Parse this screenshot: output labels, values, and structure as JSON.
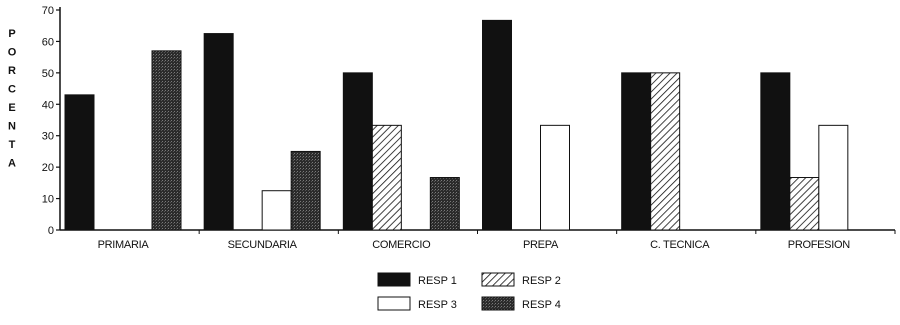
{
  "chart_data": {
    "type": "bar",
    "ylabel": "PORCENTA",
    "ylim": [
      0,
      70
    ],
    "yticks": [
      "0",
      "10",
      "20",
      "30",
      "40",
      "50",
      "60",
      "70"
    ],
    "grid": false,
    "legend_position": "bottom",
    "categories": [
      "PRIMARIA",
      "SECUNDARIA",
      "COMERCIO",
      "PREPA",
      "C. TECNICA",
      "PROFESION"
    ],
    "series": [
      {
        "name": "RESP 1",
        "values": [
          43,
          62.5,
          50,
          66.7,
          50,
          50
        ],
        "color": "#111111",
        "pattern": "solid"
      },
      {
        "name": "RESP 2",
        "values": [
          0,
          0,
          33.3,
          0,
          50,
          16.7
        ],
        "color": "#ffffff",
        "pattern": "hatch"
      },
      {
        "name": "RESP 3",
        "values": [
          0,
          12.5,
          0,
          33.3,
          0,
          33.3
        ],
        "color": "#ffffff",
        "pattern": "white"
      },
      {
        "name": "RESP 4",
        "values": [
          57,
          25,
          16.7,
          0,
          0,
          0
        ],
        "color": "#2a2a2a",
        "pattern": "dense"
      }
    ]
  }
}
